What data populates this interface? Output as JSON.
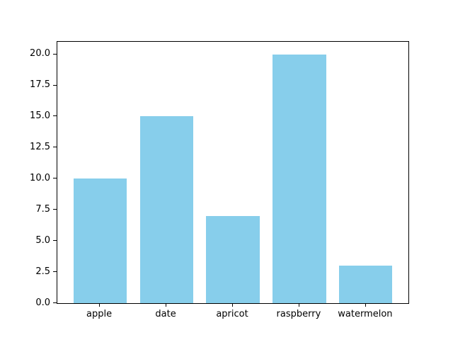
{
  "figure": {
    "background": "#ffffff",
    "axes_background": "#ffffff",
    "spine_color": "#000000",
    "tick_color": "#000000",
    "text_color": "#000000"
  },
  "chart_data": {
    "type": "bar",
    "title": "",
    "xlabel": "",
    "ylabel": "",
    "categories": [
      "apple",
      "date",
      "apricot",
      "raspberry",
      "watermelon"
    ],
    "values": [
      10,
      15,
      7,
      20,
      3
    ],
    "bar_color": "#87CEEB",
    "bar_width": 0.8,
    "xlim": [
      -0.64,
      4.64
    ],
    "ylim": [
      0,
      21
    ],
    "ytick_values": [
      0,
      2.5,
      5,
      7.5,
      10,
      12.5,
      15,
      17.5,
      20
    ],
    "ytick_labels": [
      "0.0",
      "2.5",
      "5.0",
      "7.5",
      "10.0",
      "12.5",
      "15.0",
      "17.5",
      "20.0"
    ],
    "grid": false,
    "legend": null
  }
}
